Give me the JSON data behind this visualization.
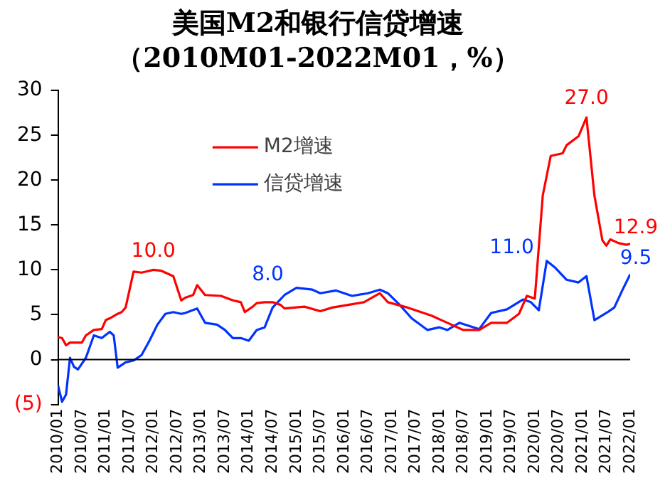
{
  "chart_data": {
    "type": "line",
    "title": "美国M2和银行信贷增速",
    "subtitle": "（2010M01-2022M01，%）",
    "xlim": [
      "2010-01",
      "2022-01"
    ],
    "xticks": [
      {
        "value": "2010-01",
        "label": "2010/01"
      },
      {
        "value": "2010-07",
        "label": "2010/07"
      },
      {
        "value": "2011-01",
        "label": "2011/01"
      },
      {
        "value": "2011-07",
        "label": "2011/07"
      },
      {
        "value": "2012-01",
        "label": "2012/01"
      },
      {
        "value": "2012-07",
        "label": "2012/07"
      },
      {
        "value": "2013-01",
        "label": "2013/01"
      },
      {
        "value": "2013-07",
        "label": "2013/07"
      },
      {
        "value": "2014-01",
        "label": "2014/01"
      },
      {
        "value": "2014-07",
        "label": "2014/07"
      },
      {
        "value": "2015-01",
        "label": "2015/01"
      },
      {
        "value": "2015-07",
        "label": "2015/07"
      },
      {
        "value": "2016-01",
        "label": "2016/01"
      },
      {
        "value": "2016-07",
        "label": "2016/07"
      },
      {
        "value": "2017-01",
        "label": "2017/01"
      },
      {
        "value": "2017-07",
        "label": "2017/07"
      },
      {
        "value": "2018-01",
        "label": "2018/01"
      },
      {
        "value": "2018-07",
        "label": "2018/07"
      },
      {
        "value": "2019-01",
        "label": "2019/01"
      },
      {
        "value": "2019-07",
        "label": "2019/07"
      },
      {
        "value": "2020-01",
        "label": "2020/01"
      },
      {
        "value": "2020-07",
        "label": "2020/07"
      },
      {
        "value": "2021-01",
        "label": "2021/01"
      },
      {
        "value": "2021-07",
        "label": "2021/07"
      },
      {
        "value": "2022-01",
        "label": "2022/01"
      }
    ],
    "ylim": [
      -5,
      30
    ],
    "yticks": [
      {
        "value": -5,
        "label": "(5)"
      },
      0,
      5,
      10,
      15,
      20,
      25,
      30
    ],
    "grid": false,
    "legend": "top left",
    "marker": "none",
    "line_style": "solid",
    "ref_lines": [
      {
        "axis": "y",
        "value": 0,
        "color": "#000000"
      }
    ],
    "series": [
      {
        "name": "M2增速",
        "color": "#ff0000",
        "x": [
          "2010-01",
          "2010-02",
          "2010-03",
          "2010-04",
          "2010-07",
          "2010-08",
          "2010-10",
          "2010-12",
          "2011-01",
          "2011-02",
          "2011-04",
          "2011-05",
          "2011-06",
          "2011-08",
          "2011-10",
          "2011-11",
          "2012-01",
          "2012-03",
          "2012-06",
          "2012-08",
          "2012-09",
          "2012-11",
          "2012-12",
          "2013-02",
          "2013-06",
          "2013-09",
          "2013-11",
          "2013-12",
          "2014-02",
          "2014-03",
          "2014-05",
          "2014-07",
          "2014-09",
          "2014-10",
          "2015-03",
          "2015-07",
          "2015-10",
          "2016-02",
          "2016-06",
          "2016-10",
          "2016-12",
          "2017-05",
          "2017-11",
          "2018-03",
          "2018-07",
          "2018-11",
          "2019-02",
          "2019-06",
          "2019-09",
          "2019-11",
          "2020-01",
          "2020-03",
          "2020-05",
          "2020-08",
          "2020-09",
          "2020-12",
          "2021-02",
          "2021-04",
          "2021-06",
          "2021-07",
          "2021-08",
          "2021-10",
          "2021-12",
          "2022-01"
        ],
        "values": [
          2.5,
          2.4,
          1.6,
          1.9,
          1.9,
          2.7,
          3.3,
          3.4,
          4.4,
          4.6,
          5.1,
          5.3,
          5.8,
          9.8,
          9.7,
          9.8,
          10.0,
          9.9,
          9.3,
          6.6,
          6.9,
          7.2,
          8.3,
          7.2,
          7.1,
          6.6,
          6.4,
          5.3,
          5.9,
          6.3,
          6.4,
          6.4,
          6.1,
          5.7,
          5.9,
          5.4,
          5.8,
          6.1,
          6.4,
          7.4,
          6.4,
          5.8,
          4.9,
          4.1,
          3.3,
          3.3,
          4.1,
          4.1,
          5.1,
          7.1,
          6.8,
          18.3,
          22.7,
          23.0,
          23.9,
          24.9,
          27.0,
          18.3,
          13.3,
          12.7,
          13.4,
          13.0,
          12.8,
          12.9
        ],
        "value_labels": [
          null,
          null,
          null,
          null,
          null,
          null,
          null,
          null,
          null,
          null,
          null,
          null,
          null,
          null,
          null,
          null,
          "10.0",
          null,
          null,
          null,
          null,
          null,
          null,
          null,
          null,
          null,
          null,
          null,
          null,
          null,
          null,
          null,
          null,
          null,
          null,
          null,
          null,
          null,
          null,
          null,
          null,
          null,
          null,
          null,
          null,
          null,
          null,
          null,
          null,
          null,
          null,
          null,
          null,
          null,
          null,
          null,
          "27.0",
          null,
          null,
          null,
          null,
          null,
          null,
          "12.9"
        ]
      },
      {
        "name": "信贷增速",
        "color": "#0033ff",
        "x": [
          "2010-01",
          "2010-02",
          "2010-03",
          "2010-04",
          "2010-05",
          "2010-06",
          "2010-08",
          "2010-10",
          "2010-12",
          "2011-02",
          "2011-03",
          "2011-04",
          "2011-06",
          "2011-08",
          "2011-10",
          "2011-12",
          "2012-02",
          "2012-04",
          "2012-06",
          "2012-08",
          "2012-09",
          "2012-12",
          "2013-02",
          "2013-05",
          "2013-07",
          "2013-09",
          "2013-11",
          "2014-01",
          "2014-03",
          "2014-05",
          "2014-07",
          "2014-10",
          "2015-01",
          "2015-05",
          "2015-07",
          "2015-11",
          "2016-03",
          "2016-07",
          "2016-10",
          "2016-12",
          "2017-03",
          "2017-06",
          "2017-10",
          "2018-01",
          "2018-03",
          "2018-06",
          "2018-11",
          "2019-02",
          "2019-06",
          "2019-10",
          "2019-12",
          "2020-02",
          "2020-04",
          "2020-06",
          "2020-09",
          "2020-12",
          "2021-02",
          "2021-04",
          "2021-07",
          "2021-09",
          "2021-11",
          "2022-01"
        ],
        "values": [
          -2.9,
          -4.7,
          -3.9,
          0.2,
          -0.8,
          -1.1,
          0.2,
          2.7,
          2.4,
          3.1,
          2.7,
          -0.9,
          -0.3,
          -0.1,
          0.5,
          2.1,
          3.9,
          5.1,
          5.3,
          5.1,
          5.2,
          5.7,
          4.1,
          3.9,
          3.3,
          2.4,
          2.4,
          2.1,
          3.3,
          3.6,
          5.8,
          7.2,
          8.0,
          7.8,
          7.4,
          7.7,
          7.1,
          7.4,
          7.8,
          7.4,
          6.1,
          4.6,
          3.3,
          3.6,
          3.3,
          4.1,
          3.4,
          5.2,
          5.6,
          6.7,
          6.4,
          5.5,
          11.0,
          10.3,
          8.9,
          8.6,
          9.3,
          4.4,
          5.2,
          5.8,
          7.7,
          9.5
        ],
        "value_labels": [
          null,
          null,
          null,
          null,
          null,
          null,
          null,
          null,
          null,
          null,
          null,
          null,
          null,
          null,
          null,
          null,
          null,
          null,
          null,
          null,
          null,
          null,
          null,
          null,
          null,
          null,
          null,
          null,
          null,
          null,
          null,
          null,
          "8.0",
          null,
          null,
          null,
          null,
          null,
          null,
          null,
          null,
          null,
          null,
          null,
          null,
          null,
          null,
          null,
          null,
          null,
          null,
          null,
          "11.0",
          null,
          null,
          null,
          null,
          null,
          null,
          null,
          null,
          "9.5"
        ]
      }
    ]
  }
}
